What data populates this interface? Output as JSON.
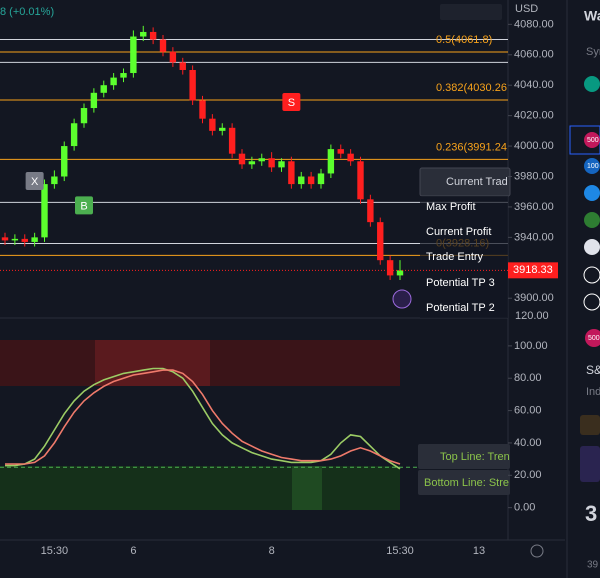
{
  "header": {
    "price_change": "8 (+0.01%)",
    "currency": "USD",
    "volume_axis_label": "120.00"
  },
  "chart_data": [
    {
      "type": "candlestick",
      "categories": [
        null,
        null,
        null,
        null,
        null,
        "15:30",
        null,
        null,
        null,
        null,
        null,
        null,
        null,
        "6",
        null,
        null,
        null,
        null,
        null,
        null,
        null,
        null,
        null,
        null,
        null,
        null,
        null,
        "8",
        null,
        null,
        null,
        null,
        null,
        null,
        null,
        null,
        null,
        null,
        null,
        null,
        "15:30",
        null,
        null,
        null,
        null,
        null,
        null,
        null,
        "13"
      ],
      "open": [
        3940,
        3938,
        3939,
        3937,
        3940,
        3975,
        3980,
        4000,
        4015,
        4025,
        4035,
        4040,
        4045,
        4048,
        4072,
        4075,
        4070,
        4062,
        4055,
        4050,
        4030,
        4018,
        4010,
        4012,
        3995,
        3988,
        3990,
        3992,
        3986,
        3990,
        3975,
        3980,
        3975,
        3982,
        3998,
        3995,
        3990,
        3965,
        3950,
        3925,
        3915,
        null,
        null,
        null,
        null,
        null,
        null,
        null,
        null
      ],
      "high": [
        3943,
        3942,
        3942,
        3943,
        3978,
        3984,
        4003,
        4018,
        4028,
        4038,
        4043,
        4048,
        4051,
        4076,
        4079,
        4078,
        4073,
        4065,
        4058,
        4053,
        4033,
        4021,
        4015,
        4015,
        3998,
        3993,
        3995,
        3996,
        3992,
        3993,
        3983,
        3983,
        3985,
        4001,
        4001,
        3998,
        3993,
        3968,
        3953,
        3928,
        3925,
        null,
        null,
        null,
        null,
        null,
        null,
        null,
        null
      ],
      "low": [
        3935,
        3935,
        3934,
        3934,
        3937,
        3972,
        3977,
        3997,
        4012,
        4022,
        4032,
        4037,
        4042,
        4045,
        4069,
        4067,
        4059,
        4052,
        4047,
        4027,
        4015,
        4007,
        4007,
        3992,
        3985,
        3985,
        3987,
        3983,
        3983,
        3972,
        3972,
        3972,
        3972,
        3979,
        3992,
        3987,
        3962,
        3947,
        3922,
        3912,
        3912,
        null,
        null,
        null,
        null,
        null,
        null,
        null,
        null
      ],
      "close": [
        3938,
        3939,
        3937,
        3940,
        3975,
        3980,
        4000,
        4015,
        4025,
        4035,
        4040,
        4045,
        4048,
        4072,
        4075,
        4070,
        4062,
        4055,
        4050,
        4030,
        4018,
        4010,
        4012,
        3995,
        3988,
        3990,
        3992,
        3986,
        3990,
        3975,
        3980,
        3975,
        3982,
        3998,
        3995,
        3990,
        3965,
        3950,
        3925,
        3915,
        3918.33,
        null,
        null,
        null,
        null,
        null,
        null,
        null,
        null
      ],
      "up_color": "#5cff2e",
      "down_color": "#ff1f1f",
      "ylim": [
        3887,
        4096
      ],
      "yticks": [
        {
          "value": 3900,
          "label": "3900.00"
        },
        {
          "value": 3920,
          "label": "3920.00"
        },
        {
          "value": 3940,
          "label": "3940.00"
        },
        {
          "value": 3960,
          "label": "3960.00"
        },
        {
          "value": 3980,
          "label": "3980.00"
        },
        {
          "value": 4000,
          "label": "4000.00"
        },
        {
          "value": 4020,
          "label": "4020.00"
        },
        {
          "value": 4040,
          "label": "4040.00"
        },
        {
          "value": 4060,
          "label": "4060.00"
        },
        {
          "value": 4080,
          "label": "4080.00"
        }
      ],
      "levels": [
        {
          "value": 4061.8,
          "label": "0.5(4061.8)"
        },
        {
          "value": 4030.26,
          "label": "0.382(4030.26"
        },
        {
          "value": 3991.24,
          "label": "0.236(3991.24"
        },
        {
          "value": 3928.16,
          "label": "0(3928.16)"
        }
      ],
      "levels_color": "#f7a21b",
      "lines": [
        4070,
        4055,
        3963,
        3936
      ],
      "lines_color": "#d1d4dc",
      "signals": [
        {
          "label": "X",
          "index": 3,
          "price": 3977,
          "color": "#787b86"
        },
        {
          "label": "B",
          "index": 8,
          "price": 3961,
          "color": "#4caf50"
        },
        {
          "label": "S",
          "index": 29,
          "price": 4029,
          "color": "#ff1f1f"
        }
      ]
    },
    {
      "type": "line",
      "series": [
        {
          "color": "#9ccc65",
          "values": [
            26,
            26,
            27,
            30,
            38,
            48,
            58,
            66,
            72,
            76,
            79,
            81,
            83,
            84,
            85,
            86,
            86,
            84,
            80,
            72,
            62,
            52,
            45,
            40,
            37,
            34,
            32,
            30,
            29,
            28,
            28,
            28,
            29,
            33,
            40,
            45,
            44,
            38,
            32,
            28,
            24,
            null,
            null,
            null,
            null,
            null,
            null,
            null,
            null
          ]
        },
        {
          "color": "#ef7a6b",
          "values": [
            27,
            27,
            27,
            28,
            32,
            40,
            50,
            59,
            66,
            71,
            75,
            78,
            80,
            82,
            83,
            84,
            85,
            85,
            83,
            78,
            70,
            60,
            52,
            46,
            41,
            38,
            35,
            33,
            31,
            30,
            29,
            29,
            29,
            30,
            32,
            35,
            37,
            35,
            32,
            29,
            27,
            null,
            null,
            null,
            null,
            null,
            null,
            null,
            null
          ]
        }
      ],
      "threshold": 25,
      "threshold_color": "#4caf50",
      "ylim": [
        -20,
        116
      ],
      "yticks": [
        {
          "value": 0,
          "label": "0.00"
        },
        {
          "value": 20,
          "label": "20.00"
        },
        {
          "value": 40,
          "label": "40.00"
        },
        {
          "value": 60,
          "label": "60.00"
        },
        {
          "value": 80,
          "label": "80.00"
        },
        {
          "value": 100,
          "label": "100.00"
        }
      ],
      "annotations": [
        "Top Line: Tren",
        "Bottom Line: Stre"
      ]
    }
  ],
  "trade_panel": {
    "title": "Current Trad",
    "items": [
      "Max Profit",
      "Current Profit",
      "Trade Entry",
      "Potential TP 3",
      "Potential TP 2"
    ]
  },
  "sidebar": {
    "title": "Wa",
    "label": "Sym",
    "badges": [
      "500",
      "100",
      "500"
    ],
    "name": "S&",
    "sub": "Ind",
    "big": "3",
    "bottom": "39"
  }
}
